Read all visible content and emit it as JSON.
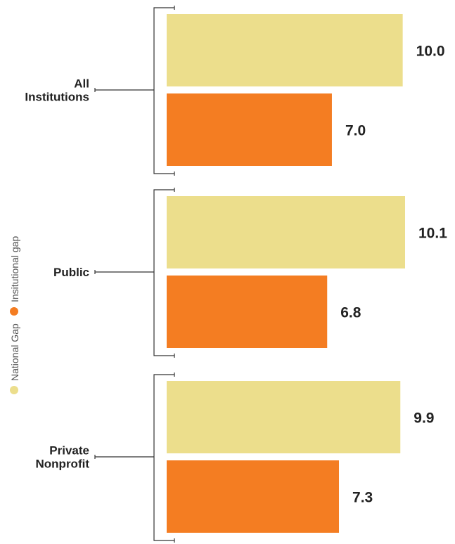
{
  "chart_data": {
    "type": "bar",
    "orientation": "horizontal",
    "categories": [
      "All\nInstitutions",
      "Public",
      "Private\nNonprofit"
    ],
    "series": [
      {
        "name": "National Gap",
        "values": [
          10.0,
          10.1,
          9.9
        ],
        "labels": [
          "10.0",
          "10.1",
          "9.9"
        ],
        "color": "#ECDE8C"
      },
      {
        "name": "Insitutional gap",
        "values": [
          7.0,
          6.8,
          7.3
        ],
        "labels": [
          "7.0",
          "6.8",
          "7.3"
        ],
        "color": "#F47D22"
      }
    ],
    "xlim": [
      0,
      10.1
    ],
    "legend_position": "left, vertical",
    "grid": false
  }
}
